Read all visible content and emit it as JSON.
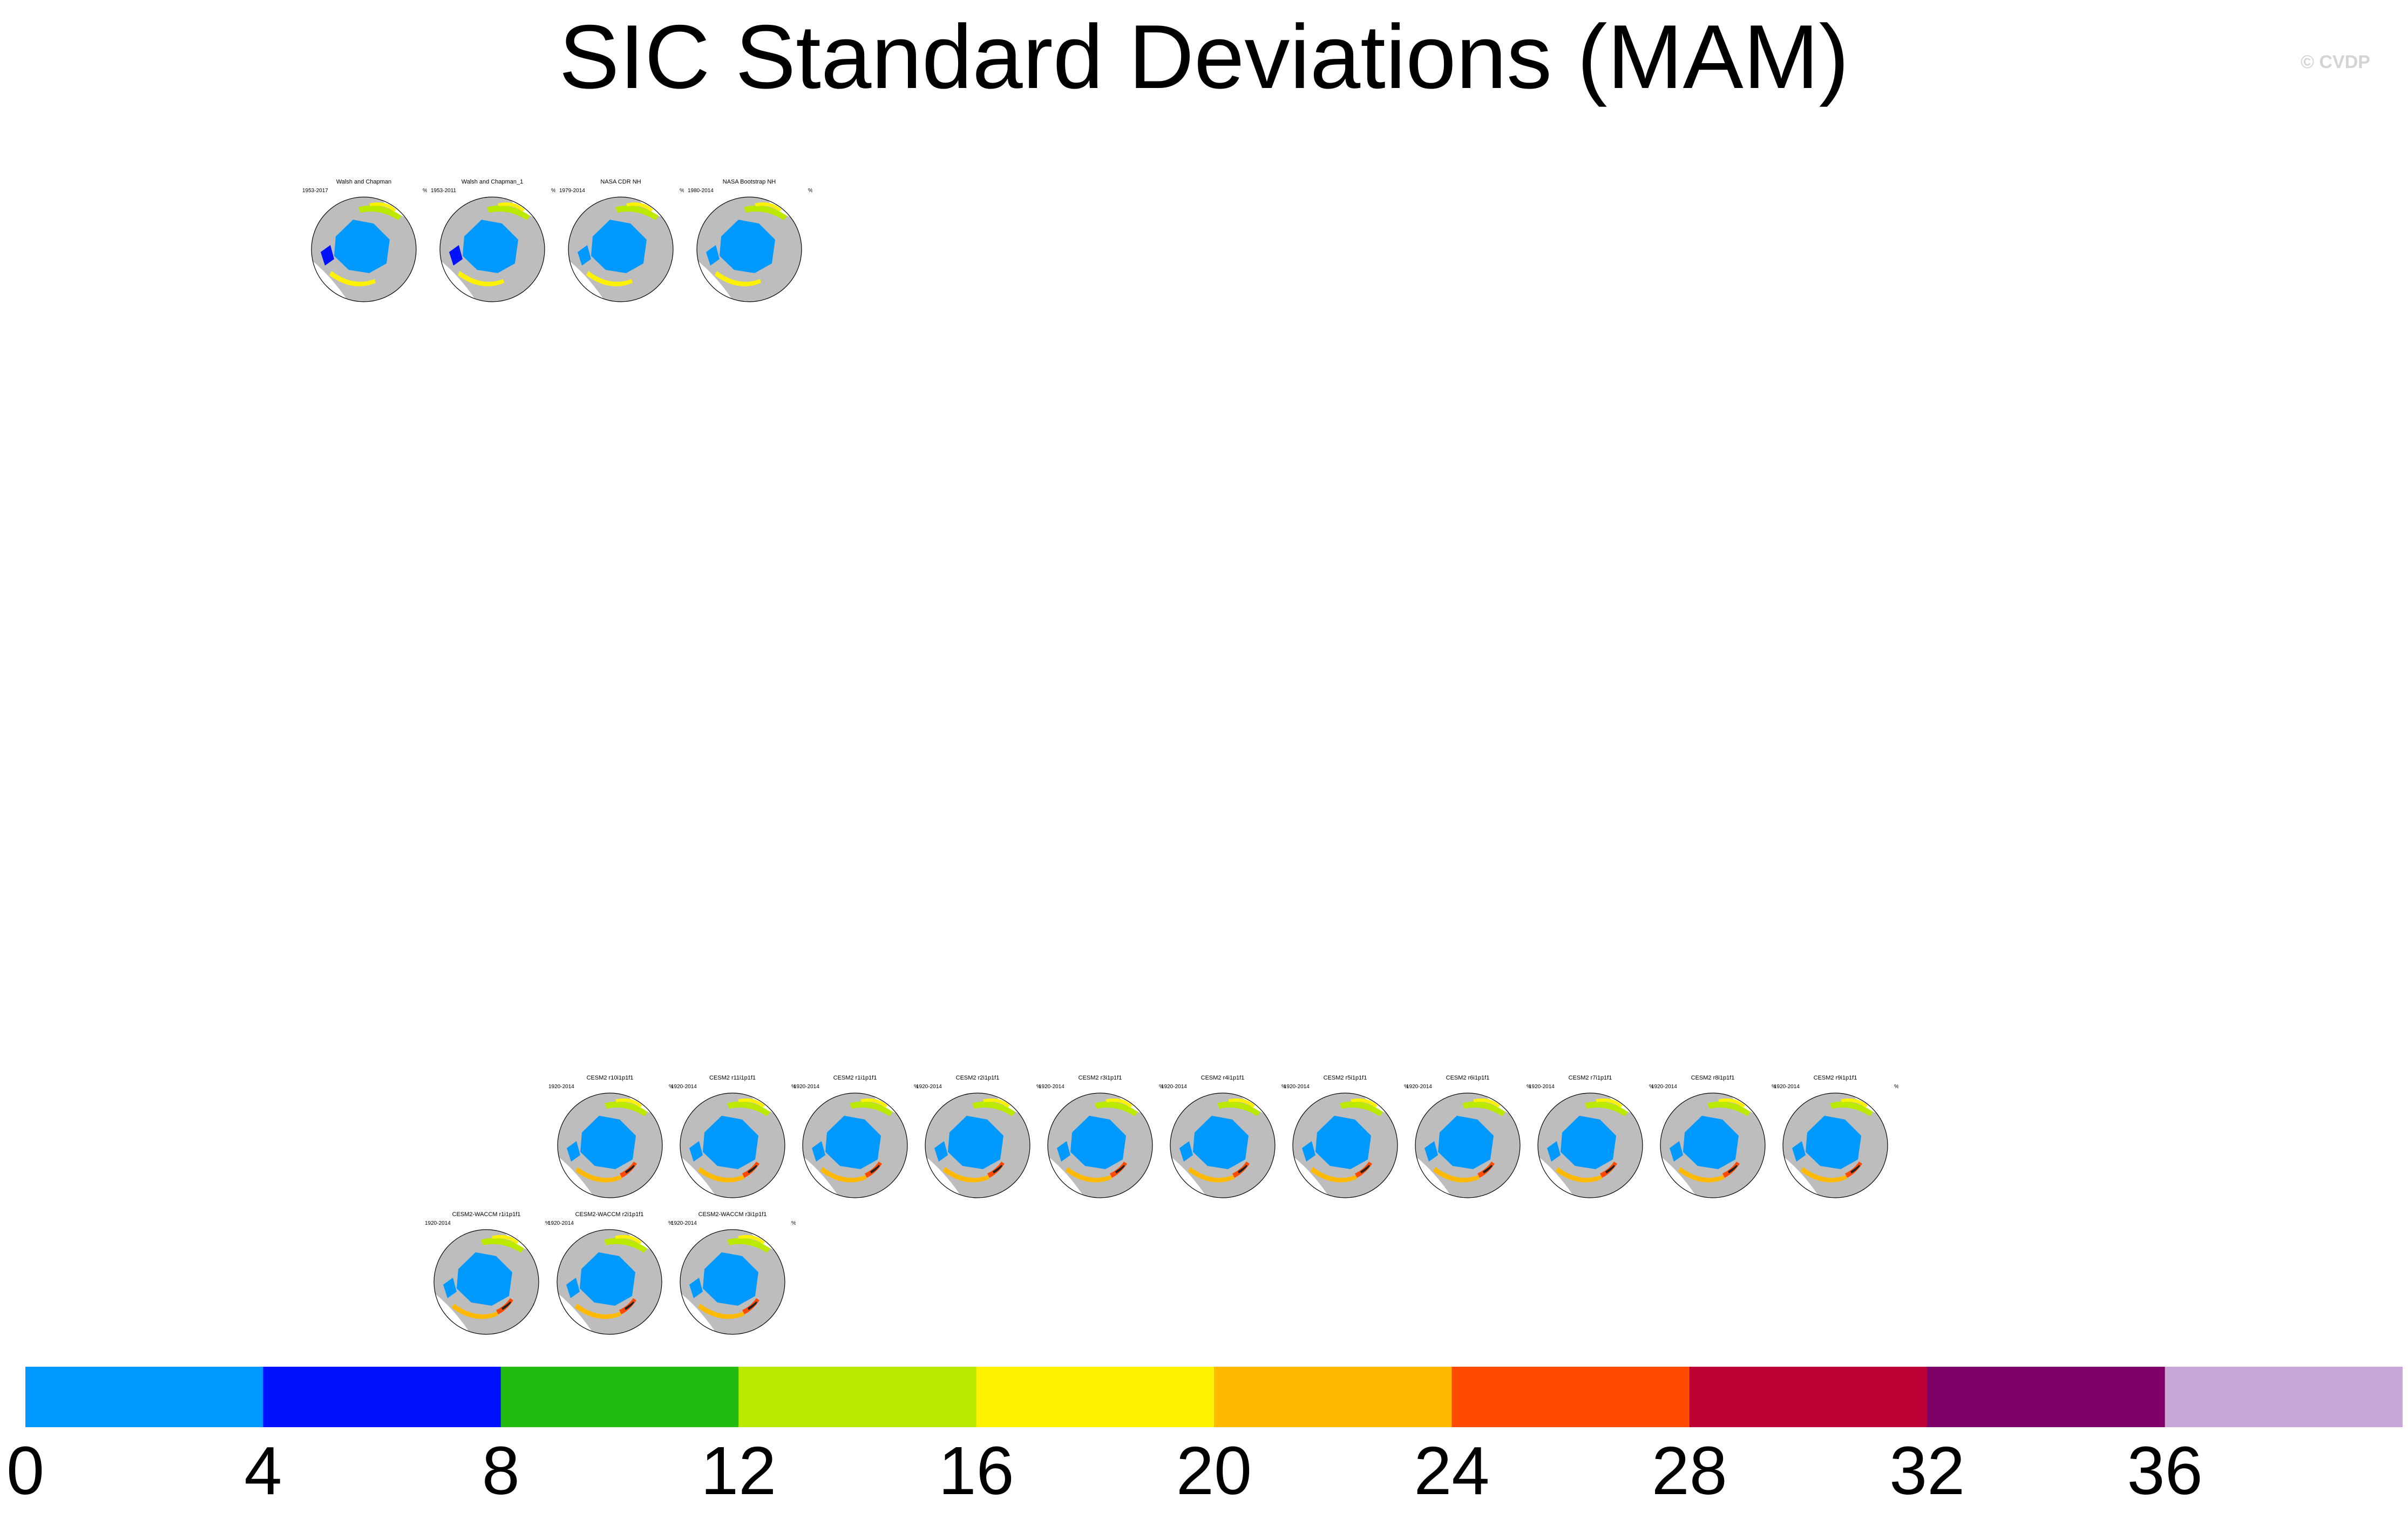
{
  "title": "SIC Standard Deviations (MAM)",
  "copyright": "© CVDP",
  "units": "%",
  "observations": [
    {
      "name": "Walsh and Chapman",
      "years": "1953-2017"
    },
    {
      "name": "Walsh and Chapman_1",
      "years": "1953-2011"
    },
    {
      "name": "NASA CDR NH",
      "years": "1979-2014"
    },
    {
      "name": "NASA Bootstrap NH",
      "years": "1980-2014"
    }
  ],
  "cesm2": [
    {
      "name": "CESM2 r10i1p1f1",
      "years": "1920-2014"
    },
    {
      "name": "CESM2 r11i1p1f1",
      "years": "1920-2014"
    },
    {
      "name": "CESM2 r1i1p1f1",
      "years": "1920-2014"
    },
    {
      "name": "CESM2 r2i1p1f1",
      "years": "1920-2014"
    },
    {
      "name": "CESM2 r3i1p1f1",
      "years": "1920-2014"
    },
    {
      "name": "CESM2 r4i1p1f1",
      "years": "1920-2014"
    },
    {
      "name": "CESM2 r5i1p1f1",
      "years": "1920-2014"
    },
    {
      "name": "CESM2 r6i1p1f1",
      "years": "1920-2014"
    },
    {
      "name": "CESM2 r7i1p1f1",
      "years": "1920-2014"
    },
    {
      "name": "CESM2 r8i1p1f1",
      "years": "1920-2014"
    },
    {
      "name": "CESM2 r9i1p1f1",
      "years": "1920-2014"
    }
  ],
  "waccm": [
    {
      "name": "CESM2-WACCM r1i1p1f1",
      "years": "1920-2014"
    },
    {
      "name": "CESM2-WACCM r2i1p1f1",
      "years": "1920-2014"
    },
    {
      "name": "CESM2-WACCM r3i1p1f1",
      "years": "1920-2014"
    }
  ],
  "colorbar": {
    "colors": [
      "#0099ff",
      "#0011ff",
      "#22bb11",
      "#bbea00",
      "#fff200",
      "#ffb900",
      "#ff4a00",
      "#bb0033",
      "#7f0066",
      "#c8a8d8"
    ],
    "labels": [
      "0",
      "4",
      "8",
      "12",
      "16",
      "20",
      "24",
      "28",
      "32",
      "36"
    ]
  }
}
